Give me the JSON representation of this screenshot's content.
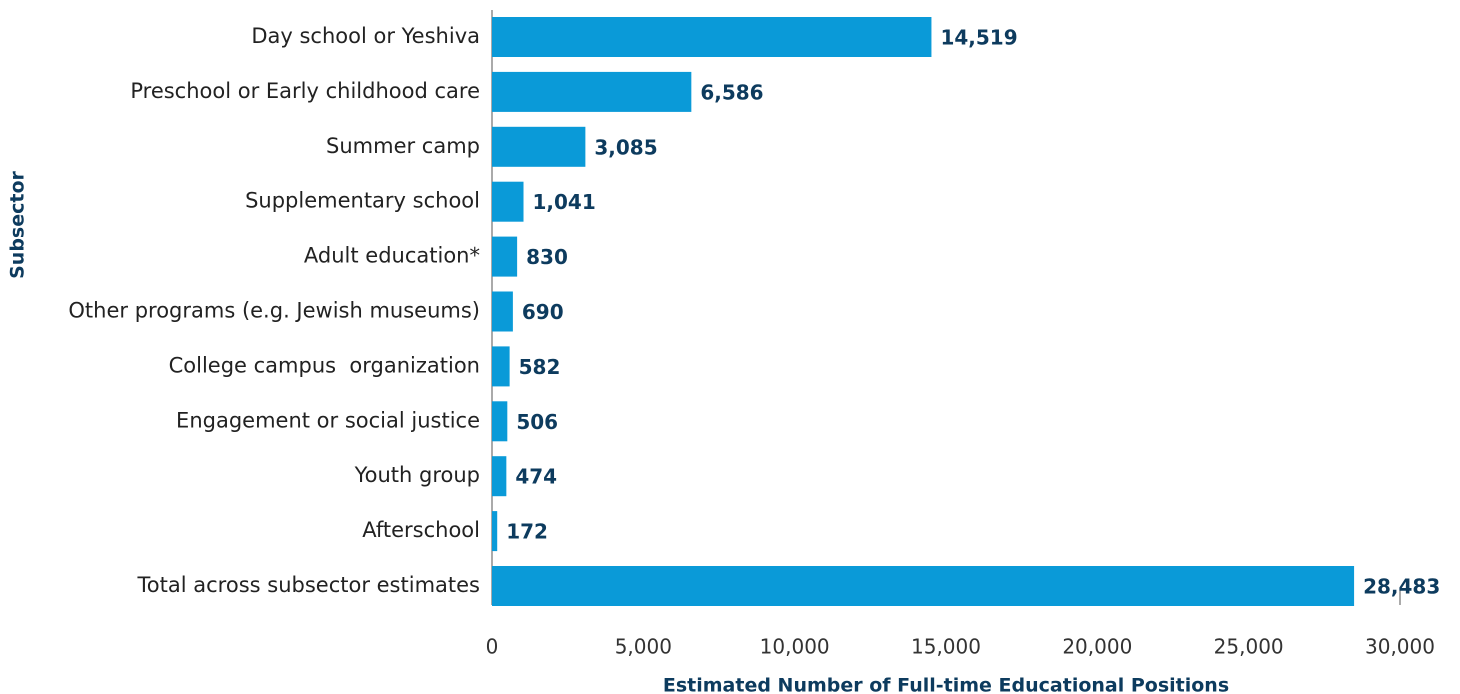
{
  "chart_data": {
    "type": "bar",
    "orientation": "horizontal",
    "xlabel": "Estimated Number of Full-time Educational Positions",
    "ylabel": "Subsector",
    "categories": [
      "Day school or Yeshiva",
      "Preschool or Early childhood care",
      "Summer camp",
      "Supplementary school",
      "Adult education*",
      "Other programs (e.g. Jewish museums)",
      "College campus  organization",
      "Engagement or social justice",
      "Youth group",
      "Afterschool",
      "Total across subsector estimates"
    ],
    "values": [
      14519,
      6586,
      3085,
      1041,
      830,
      690,
      582,
      506,
      474,
      172,
      28483
    ],
    "value_labels": [
      "14,519",
      "6,586",
      "3,085",
      "1,041",
      "830",
      "690",
      "582",
      "506",
      "474",
      "172",
      "28,483"
    ],
    "color": "#0a9ad8",
    "xlim": [
      0,
      30000
    ],
    "xticks": [
      0,
      {
        "value": 5000,
        "label": "5,000"
      },
      {
        "value": 10000,
        "label": "10,000"
      },
      {
        "value": 15000,
        "label": "15,000"
      },
      {
        "value": 20000,
        "label": "20,000"
      },
      {
        "value": 25000,
        "label": "25,000"
      },
      {
        "value": 30000,
        "label": "30,000"
      }
    ],
    "grid": false
  }
}
